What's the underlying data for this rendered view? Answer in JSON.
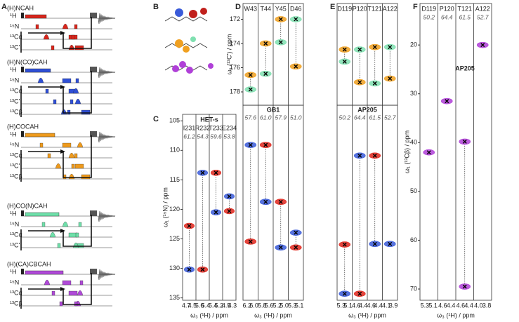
{
  "panels": {
    "A": {
      "letter": "A",
      "sequences": [
        {
          "name": "(H)NCAH",
          "color": "#d9261c",
          "channels": [
            "¹H",
            "¹⁵N",
            "¹³Cα",
            "¹³C'"
          ]
        },
        {
          "name": "(H)N(CO)CAH",
          "color": "#2f4fd6",
          "channels": [
            "¹H",
            "¹⁵N",
            "¹³Cα",
            "¹³C'",
            "¹³Cβ"
          ]
        },
        {
          "name": "(H)COCAH",
          "color": "#ee9a1c",
          "channels": [
            "¹H",
            "¹⁵N",
            "¹³Cα",
            "¹³C'",
            "¹³Cβ"
          ]
        },
        {
          "name": "(H)CO(N)CAH",
          "color": "#6fe0aa",
          "channels": [
            "¹H",
            "¹⁵N",
            "¹³Cα",
            "¹³C'"
          ]
        },
        {
          "name": "(H)(CA)CBCAH",
          "color": "#b04ad8",
          "channels": [
            "¹H",
            "¹⁵N",
            "¹³Cα",
            "¹³Cβ"
          ]
        }
      ]
    },
    "B": {
      "letter": "B"
    },
    "C": {
      "letter": "C",
      "title": "HET-s",
      "residues": [
        "I231",
        "R232",
        "T233",
        "E234"
      ],
      "shifts": [
        "61.2",
        "54.3",
        "59.6",
        "53.8"
      ],
      "xticks": [
        [
          "4.7",
          "4.5"
        ],
        [
          "5.6",
          "5.4"
        ],
        [
          "5.4",
          "5.2"
        ],
        [
          "4.5",
          "4.3"
        ]
      ],
      "xlabel": "ω₃ (¹H) / ppm",
      "ylabel": "ω₁ (¹⁵N) / ppm",
      "ylim": [
        103.9,
        135.4
      ],
      "yticks": [
        105,
        110,
        115,
        120,
        125,
        130,
        135
      ],
      "peaks": [
        [
          {
            "value": 122.8,
            "color": "#e0261c"
          },
          {
            "value": 130.2,
            "color": "#3a5bd9"
          }
        ],
        [
          {
            "value": 113.8,
            "color": "#3a5bd9"
          },
          {
            "value": 130.2,
            "color": "#e0261c"
          }
        ],
        [
          {
            "value": 113.8,
            "color": "#e0261c"
          },
          {
            "value": 120.5,
            "color": "#3a5bd9"
          }
        ],
        [
          {
            "value": 117.8,
            "color": "#3a5bd9"
          },
          {
            "value": 120.3,
            "color": "#e0261c"
          }
        ]
      ]
    },
    "D": {
      "letter": "D",
      "title": "GB1",
      "residues": [
        "W43",
        "T44",
        "Y45",
        "D46"
      ],
      "shifts": [
        "57.6",
        "61.0",
        "57.9",
        "51.0"
      ],
      "xticks": [
        [
          "6.2",
          "6.0"
        ],
        [
          "5.8",
          "5.6"
        ],
        [
          "5.2",
          "5.0"
        ],
        [
          "5.3",
          "5.1"
        ]
      ],
      "xlabel": "ω₃ (¹H) / ppm",
      "top": {
        "ylabel": "ω₁ (¹³C') / ppm",
        "ylim": [
          170.7,
          179.1
        ],
        "yticks": [
          172,
          174,
          176,
          178
        ],
        "peaks": [
          [
            {
              "value": 176.6,
              "color": "#f0a020"
            },
            {
              "value": 177.8,
              "color": "#7fe0b0"
            }
          ],
          [
            {
              "value": 174.0,
              "color": "#f0a020"
            },
            {
              "value": 176.5,
              "color": "#7fe0b0"
            }
          ],
          [
            {
              "value": 172.0,
              "color": "#f0a020"
            },
            {
              "value": 173.9,
              "color": "#7fe0b0"
            }
          ],
          [
            {
              "value": 172.0,
              "color": "#7fe0b0"
            },
            {
              "value": 175.9,
              "color": "#f0a020"
            }
          ]
        ]
      },
      "bottom": {
        "ylim": [
          102.5,
          135.4
        ],
        "peaks": [
          [
            {
              "value": 109.2,
              "color": "#3a5bd9"
            },
            {
              "value": 125.5,
              "color": "#e0261c"
            }
          ],
          [
            {
              "value": 109.2,
              "color": "#e0261c"
            },
            {
              "value": 118.8,
              "color": "#3a5bd9"
            }
          ],
          [
            {
              "value": 118.8,
              "color": "#e0261c"
            },
            {
              "value": 126.5,
              "color": "#3a5bd9"
            }
          ],
          [
            {
              "value": 124.0,
              "color": "#3a5bd9"
            },
            {
              "value": 126.5,
              "color": "#e0261c"
            }
          ]
        ]
      }
    },
    "E": {
      "letter": "E",
      "title": "AP205",
      "residues": [
        "D119",
        "P120",
        "T121",
        "A122"
      ],
      "shifts": [
        "50.2",
        "64.4",
        "61.5",
        "52.7"
      ],
      "xticks": [
        [
          "5.3",
          "5.1"
        ],
        [
          "4.6",
          "4.4"
        ],
        [
          "4.6",
          "4.4"
        ],
        [
          "4.1",
          "3.9"
        ]
      ],
      "xlabel": "ω₃ (¹H) / ppm",
      "top": {
        "ylim": [
          170.7,
          179.1
        ],
        "peaks": [
          [
            {
              "value": 174.5,
              "color": "#f0a020"
            },
            {
              "value": 175.5,
              "color": "#7fe0b0"
            }
          ],
          [
            {
              "value": 174.5,
              "color": "#7fe0b0"
            },
            {
              "value": 177.2,
              "color": "#f0a020"
            }
          ],
          [
            {
              "value": 174.3,
              "color": "#f0a020"
            },
            {
              "value": 177.3,
              "color": "#7fe0b0"
            }
          ],
          [
            {
              "value": 174.3,
              "color": "#7fe0b0"
            },
            {
              "value": 176.9,
              "color": "#f0a020"
            }
          ]
        ]
      },
      "bottom": {
        "ylim": [
          102.5,
          135.4
        ],
        "peaks": [
          [
            {
              "value": 126.0,
              "color": "#e0261c"
            },
            {
              "value": 134.3,
              "color": "#3a5bd9"
            }
          ],
          [
            {
              "value": 111.0,
              "color": "#3a5bd9"
            },
            {
              "value": 134.3,
              "color": "#e0261c"
            }
          ],
          [
            {
              "value": 111.0,
              "color": "#e0261c"
            },
            {
              "value": 125.9,
              "color": "#3a5bd9"
            }
          ],
          [
            {
              "value": 125.9,
              "color": "#3a5bd9"
            }
          ]
        ]
      }
    },
    "F": {
      "letter": "F",
      "title": "AP205",
      "residues": [
        "D119",
        "P120",
        "T121",
        "A122"
      ],
      "shifts": [
        "50.2",
        "64.4",
        "61.5",
        "52.7"
      ],
      "xticks": [
        [
          "5.3",
          "5.1"
        ],
        [
          "4.6",
          "4.4"
        ],
        [
          "4.6",
          "4.4"
        ],
        [
          "4.0",
          "3.8"
        ]
      ],
      "xlabel": "ω₃ (¹H) / ppm",
      "ylabel": "ω₁ (¹³Cβ) / ppm",
      "ylim": [
        11.5,
        72.3
      ],
      "yticks": [
        20,
        30,
        40,
        50,
        60,
        70
      ],
      "peaks": [
        [
          {
            "value": 42.0,
            "color": "#b040d8"
          }
        ],
        [
          {
            "value": 31.5,
            "color": "#b040d8"
          }
        ],
        [
          {
            "value": 39.8,
            "color": "#b040d8"
          },
          {
            "value": 69.5,
            "color": "#b040d8"
          }
        ],
        [
          {
            "value": 20.0,
            "color": "#b040d8"
          }
        ]
      ]
    }
  }
}
